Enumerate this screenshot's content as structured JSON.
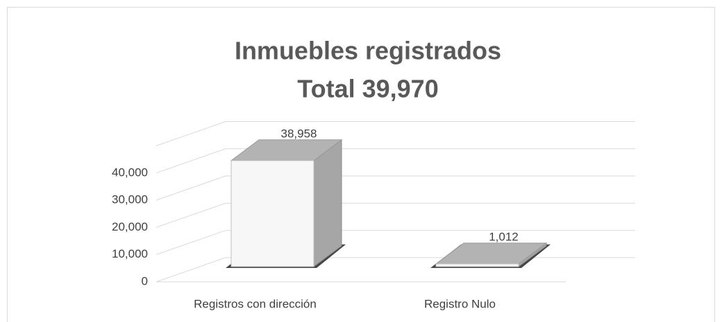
{
  "chart_data": {
    "type": "bar3d",
    "title": "Inmuebles registrados",
    "subtitle": "Total 39,970",
    "categories": [
      "Registros con dirección",
      "Registro Nulo"
    ],
    "values": [
      38958,
      1012
    ],
    "value_labels": [
      "38,958",
      "1,012"
    ],
    "ylim": [
      0,
      50000
    ],
    "yticks": [
      0,
      {
        "value": 10000,
        "label": "10,000"
      },
      {
        "value": 20000,
        "label": "20,000"
      },
      {
        "value": 30000,
        "label": "30,000"
      },
      {
        "value": 40000,
        "label": "40,000"
      }
    ],
    "grid": true,
    "color": "#f7f7f7"
  }
}
